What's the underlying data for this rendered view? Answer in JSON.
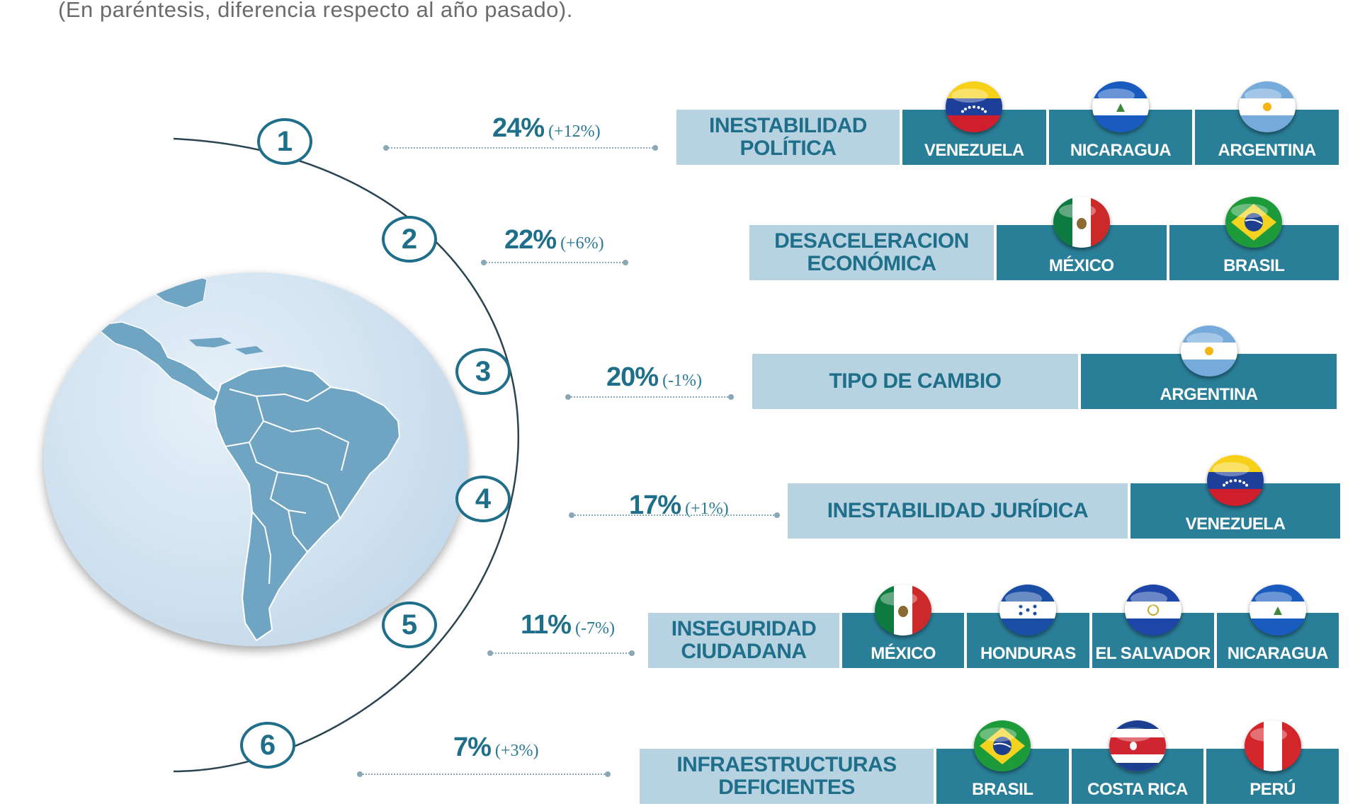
{
  "subtitle": "(En paréntesis, diferencia respecto al año pasado).",
  "colors": {
    "primary": "#1f6f8b",
    "label_bg": "#b7d3e2",
    "country_bg": "#2a7f98"
  },
  "items": [
    {
      "number": "1",
      "pct": "24%",
      "diff": "(+12%)",
      "label": "INESTABILIDAD POLÍTICA",
      "countries": [
        {
          "name": "VENEZUELA",
          "flag": "venezuela"
        },
        {
          "name": "NICARAGUA",
          "flag": "nicaragua"
        },
        {
          "name": "ARGENTINA",
          "flag": "argentina"
        }
      ]
    },
    {
      "number": "2",
      "pct": "22%",
      "diff": "(+6%)",
      "label": "DESACELERACION ECONÓMICA",
      "countries": [
        {
          "name": "MÉXICO",
          "flag": "mexico"
        },
        {
          "name": "BRASIL",
          "flag": "brasil"
        }
      ]
    },
    {
      "number": "3",
      "pct": "20%",
      "diff": "(-1%)",
      "label": "TIPO DE CAMBIO",
      "countries": [
        {
          "name": "ARGENTINA",
          "flag": "argentina"
        }
      ]
    },
    {
      "number": "4",
      "pct": "17%",
      "diff": "(+1%)",
      "label": "INESTABILIDAD JURÍDICA",
      "countries": [
        {
          "name": "VENEZUELA",
          "flag": "venezuela"
        }
      ]
    },
    {
      "number": "5",
      "pct": "11%",
      "diff": "(-7%)",
      "label": "INSEGURIDAD CIUDADANA",
      "countries": [
        {
          "name": "MÉXICO",
          "flag": "mexico"
        },
        {
          "name": "HONDURAS",
          "flag": "honduras"
        },
        {
          "name": "EL SALVADOR",
          "flag": "el-salvador"
        },
        {
          "name": "NICARAGUA",
          "flag": "nicaragua"
        }
      ]
    },
    {
      "number": "6",
      "pct": "7%",
      "diff": "(+3%)",
      "label": "INFRAESTRUCTURAS DEFICIENTES",
      "countries": [
        {
          "name": "BRASIL",
          "flag": "brasil"
        },
        {
          "name": "COSTA RICA",
          "flag": "costa-rica"
        },
        {
          "name": "PERÚ",
          "flag": "peru"
        }
      ]
    }
  ]
}
